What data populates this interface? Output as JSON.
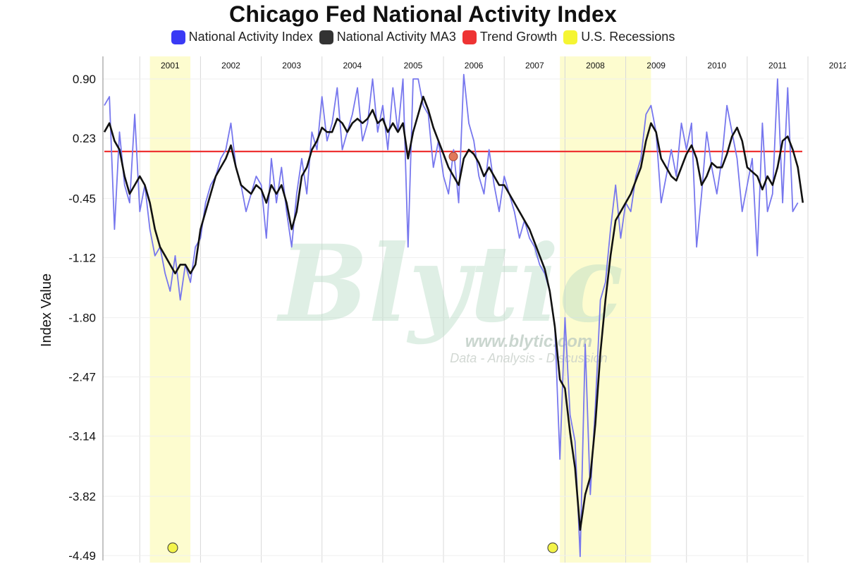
{
  "chart_data": {
    "type": "line",
    "title": "Chicago Fed National Activity Index",
    "ylabel": "Index Value",
    "xlabel": "",
    "ylim": [
      -4.49,
      1.05
    ],
    "yticks": [
      "0.90",
      "0.23",
      "-0.45",
      "-1.12",
      "-1.80",
      "-2.47",
      "-3.14",
      "-3.82",
      "-4.49"
    ],
    "year_labels": [
      "2001",
      "2002",
      "2003",
      "2004",
      "2005",
      "2006",
      "2007",
      "2008",
      "2009",
      "2010",
      "2011",
      "2012"
    ],
    "recessions": [
      {
        "start": "2001-03",
        "end": "2001-11"
      },
      {
        "start": "2007-12",
        "end": "2009-06"
      }
    ],
    "trend_growth": 0.08,
    "legend": [
      {
        "name": "National Activity Index",
        "color": "#3a3af5"
      },
      {
        "name": "National Activity MA3",
        "color": "#333333"
      },
      {
        "name": "Trend Growth",
        "color": "#ee3333"
      },
      {
        "name": "U.S. Recessions",
        "color": "#f5f532"
      }
    ],
    "legend_position": "top-center",
    "grid": "vertical-year-lines",
    "start_month": "2000-06",
    "series": [
      {
        "name": "National Activity Index",
        "color": "#7777ee",
        "values": [
          0.6,
          0.7,
          -0.8,
          0.3,
          -0.3,
          -0.5,
          0.5,
          -0.6,
          -0.3,
          -0.8,
          -1.1,
          -1.0,
          -1.3,
          -1.5,
          -1.1,
          -1.6,
          -1.2,
          -1.4,
          -1.0,
          -0.9,
          -0.5,
          -0.3,
          -0.2,
          0.0,
          0.1,
          0.4,
          -0.1,
          -0.3,
          -0.6,
          -0.4,
          -0.2,
          -0.3,
          -0.9,
          0.0,
          -0.5,
          -0.1,
          -0.6,
          -1.0,
          -0.4,
          0.0,
          -0.4,
          0.3,
          0.1,
          0.7,
          0.2,
          0.4,
          0.8,
          0.1,
          0.3,
          0.5,
          0.8,
          0.2,
          0.4,
          0.9,
          0.3,
          0.6,
          0.1,
          0.8,
          0.3,
          0.9,
          -1.0,
          0.9,
          0.9,
          0.6,
          0.5,
          -0.1,
          0.2,
          -0.2,
          -0.4,
          0.1,
          -0.5,
          0.95,
          0.4,
          0.2,
          -0.2,
          -0.4,
          0.1,
          -0.3,
          -0.6,
          -0.2,
          -0.4,
          -0.6,
          -0.9,
          -0.7,
          -0.9,
          -1.0,
          -1.2,
          -1.3,
          -1.5,
          -1.9,
          -3.4,
          -1.8,
          -2.9,
          -3.2,
          -4.5,
          -2.1,
          -3.8,
          -2.8,
          -1.6,
          -1.4,
          -0.8,
          -0.3,
          -0.9,
          -0.5,
          -0.6,
          -0.2,
          0.0,
          0.5,
          0.6,
          0.3,
          -0.5,
          -0.2,
          0.1,
          -0.2,
          0.4,
          0.1,
          0.4,
          -1.0,
          -0.4,
          0.3,
          -0.1,
          -0.4,
          0.0,
          0.6,
          0.3,
          0.0,
          -0.6,
          -0.3,
          0.0,
          -1.1,
          0.4,
          -0.6,
          -0.4,
          0.9,
          -0.5,
          0.8,
          -0.6,
          -0.5
        ]
      },
      {
        "name": "National Activity MA3",
        "color": "#111111",
        "values": [
          0.3,
          0.4,
          0.2,
          0.1,
          -0.2,
          -0.4,
          -0.3,
          -0.2,
          -0.3,
          -0.5,
          -0.8,
          -1.0,
          -1.1,
          -1.2,
          -1.3,
          -1.2,
          -1.2,
          -1.3,
          -1.2,
          -0.8,
          -0.6,
          -0.4,
          -0.2,
          -0.1,
          0.0,
          0.15,
          -0.1,
          -0.3,
          -0.35,
          -0.4,
          -0.3,
          -0.35,
          -0.5,
          -0.3,
          -0.4,
          -0.3,
          -0.5,
          -0.8,
          -0.6,
          -0.2,
          -0.1,
          0.1,
          0.2,
          0.35,
          0.3,
          0.3,
          0.45,
          0.4,
          0.3,
          0.4,
          0.45,
          0.4,
          0.45,
          0.55,
          0.4,
          0.45,
          0.3,
          0.4,
          0.3,
          0.4,
          0.0,
          0.3,
          0.5,
          0.7,
          0.55,
          0.35,
          0.2,
          0.05,
          -0.1,
          -0.2,
          -0.3,
          0.0,
          0.1,
          0.05,
          -0.05,
          -0.2,
          -0.1,
          -0.2,
          -0.3,
          -0.3,
          -0.4,
          -0.5,
          -0.6,
          -0.7,
          -0.8,
          -0.95,
          -1.1,
          -1.25,
          -1.5,
          -1.9,
          -2.5,
          -2.6,
          -3.1,
          -3.5,
          -4.2,
          -3.8,
          -3.6,
          -3.0,
          -2.2,
          -1.6,
          -1.1,
          -0.7,
          -0.6,
          -0.5,
          -0.4,
          -0.25,
          -0.1,
          0.2,
          0.4,
          0.3,
          0.0,
          -0.1,
          -0.2,
          -0.25,
          -0.1,
          0.05,
          0.15,
          0.0,
          -0.3,
          -0.2,
          -0.05,
          -0.1,
          -0.1,
          0.05,
          0.25,
          0.35,
          0.2,
          -0.1,
          -0.15,
          -0.2,
          -0.35,
          -0.2,
          -0.3,
          -0.1,
          0.2,
          0.25,
          0.1,
          -0.1,
          -0.5
        ]
      }
    ]
  }
}
